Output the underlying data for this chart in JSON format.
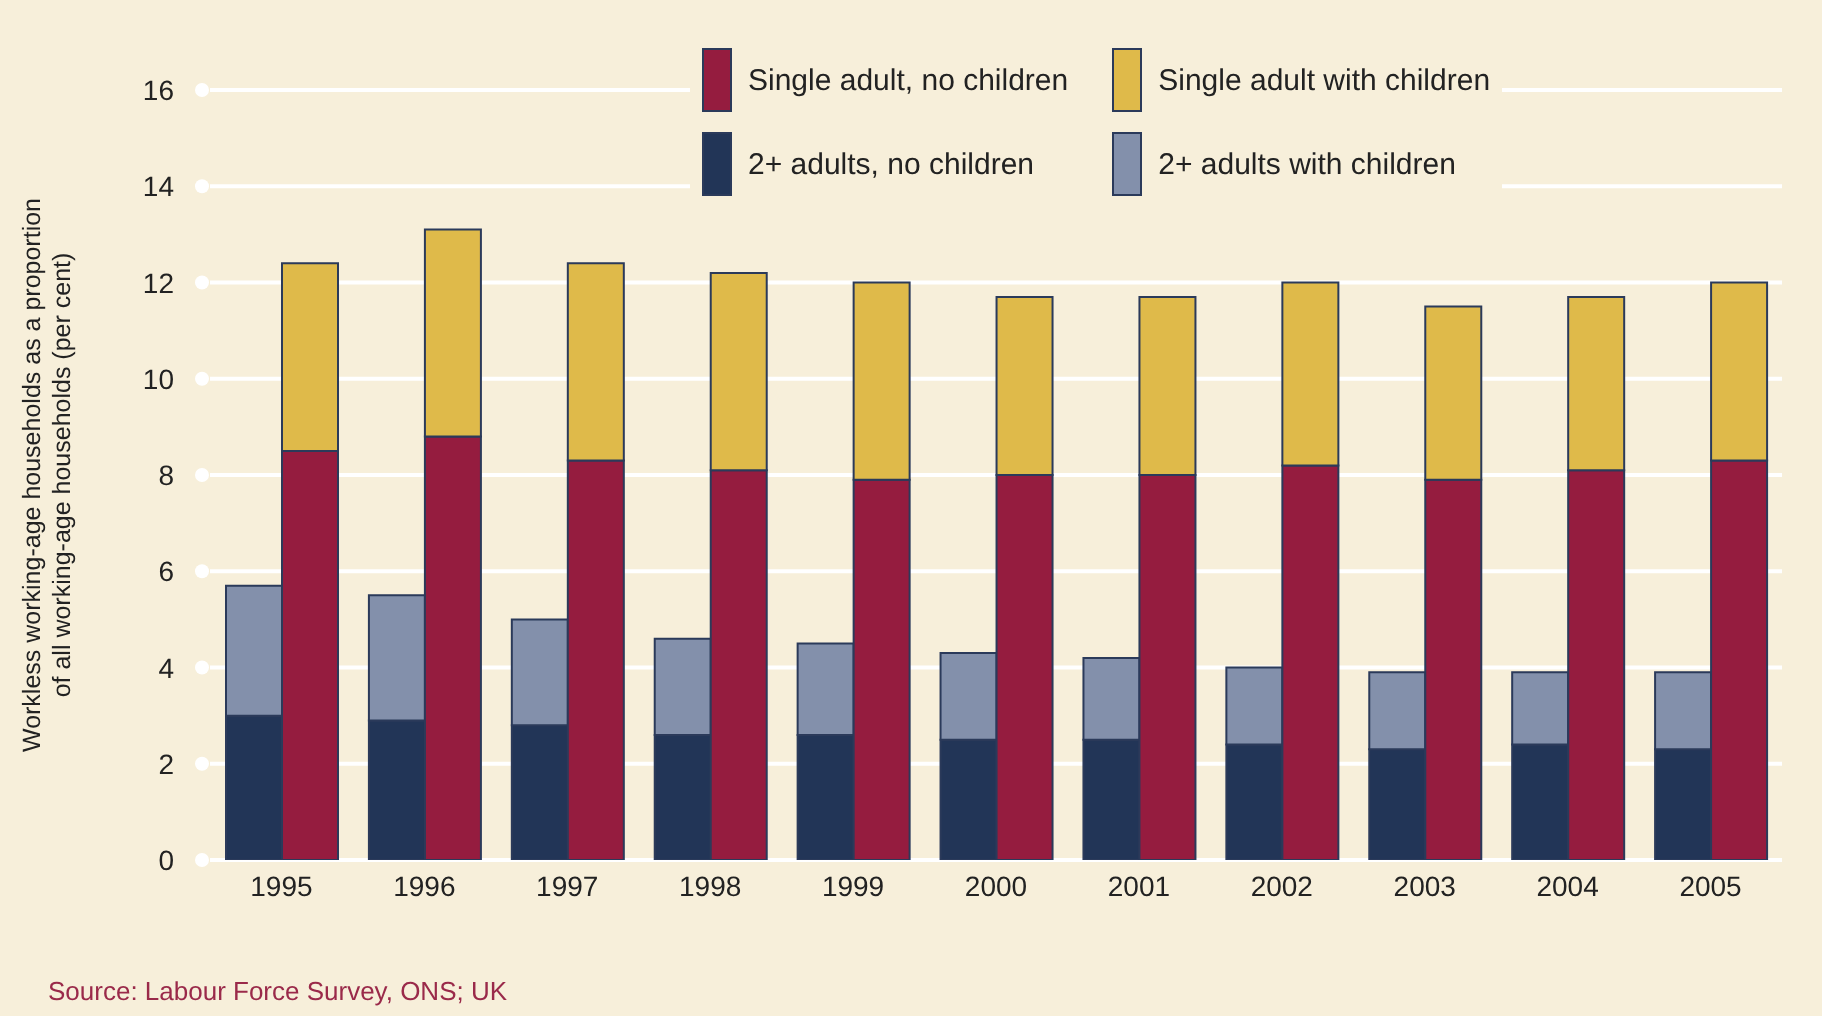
{
  "chart_data": [
    {
      "type": "bar",
      "stacked": true,
      "ylabel": "Workless working-age households as a proportion of all working-age households (per cent)",
      "categories": [
        "1995",
        "1996",
        "1997",
        "1998",
        "1999",
        "2000",
        "2001",
        "2002",
        "2003",
        "2004",
        "2005"
      ],
      "series": [
        {
          "name": "2+ adults, no children",
          "color": "#223557",
          "values": [
            3.0,
            2.9,
            2.8,
            2.6,
            2.6,
            2.5,
            2.5,
            2.4,
            2.3,
            2.4,
            2.3
          ]
        },
        {
          "name": "2+ adults with children",
          "color": "#8390ab",
          "values": [
            2.7,
            2.6,
            2.2,
            2.0,
            1.9,
            1.8,
            1.7,
            1.6,
            1.6,
            1.5,
            1.6
          ]
        }
      ],
      "ylim": [
        0,
        16
      ],
      "yticks": [
        0,
        2,
        4,
        6,
        8,
        10,
        12,
        14,
        16
      ],
      "grid": "y",
      "legend": "top",
      "annotations": [
        "Source: Labour Force Survey, ONS; UK"
      ]
    },
    {
      "type": "bar",
      "stacked": true,
      "categories": [
        "1995",
        "1996",
        "1997",
        "1998",
        "1999",
        "2000",
        "2001",
        "2002",
        "2003",
        "2004",
        "2005"
      ],
      "series": [
        {
          "name": "Single adult, no children",
          "color": "#951c3f",
          "values": [
            8.5,
            8.8,
            8.3,
            8.1,
            7.9,
            8.0,
            8.0,
            8.2,
            7.9,
            8.1,
            8.3
          ]
        },
        {
          "name": "Single adult with children",
          "color": "#dfba4a",
          "values": [
            3.9,
            4.3,
            4.1,
            4.1,
            4.1,
            3.7,
            3.7,
            3.8,
            3.6,
            3.6,
            3.7
          ]
        }
      ],
      "ylim": [
        0,
        16
      ],
      "yticks": [
        0,
        2,
        4,
        6,
        8,
        10,
        12,
        14,
        16
      ],
      "tick_labels": false,
      "legend": "top"
    }
  ]
}
